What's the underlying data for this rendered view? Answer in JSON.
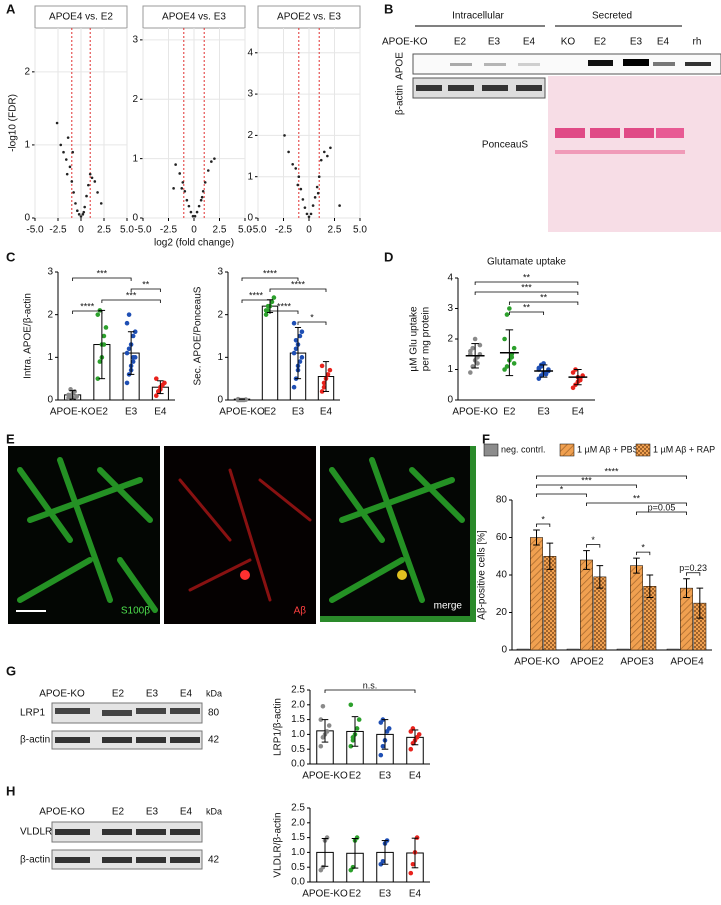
{
  "panel_labels": [
    "A",
    "B",
    "C",
    "D",
    "E",
    "F",
    "G",
    "H"
  ],
  "blot_b": {
    "headers": [
      "Intracellular",
      "Secreted"
    ],
    "lanes": [
      "APOE-KO",
      "E2",
      "E3",
      "E4",
      "KO",
      "E2",
      "E3",
      "E4",
      "rh"
    ],
    "rows": [
      "APOE",
      "β-actin"
    ],
    "stain": "PonceauS"
  },
  "image_e": {
    "channels": [
      "S100β",
      "Aβ",
      "merge"
    ]
  },
  "blot_g": {
    "lanes": [
      "APOE-KO",
      "E2",
      "E3",
      "E4"
    ],
    "unit": "kDa",
    "rows": [
      "LRP1",
      "β-actin"
    ],
    "sizes": [
      "80",
      "42"
    ]
  },
  "blot_h": {
    "lanes": [
      "APOE-KO",
      "E2",
      "E3",
      "E4"
    ],
    "unit": "kDa",
    "rows": [
      "VLDLR",
      "β-actin"
    ],
    "sizes": [
      "42"
    ]
  },
  "chart_data": [
    {
      "type": "scatter",
      "title": "APOE4 vs. E2",
      "ylabel": "-log10 (FDR)",
      "x": [
        -2.6,
        -2.2,
        -1.9,
        -1.6,
        -1.4,
        -1.2,
        -1.0,
        -0.8,
        -0.6,
        -0.4,
        -0.2,
        0,
        0.2,
        0.4,
        0.6,
        0.8,
        1.0,
        1.2,
        1.5,
        1.8,
        -1.5,
        -0.9,
        0.3,
        2.2
      ],
      "y": [
        1.3,
        1.0,
        0.9,
        0.8,
        1.1,
        0.7,
        0.5,
        0.35,
        0.2,
        0.1,
        0.05,
        0.02,
        0.05,
        0.15,
        0.3,
        0.45,
        0.6,
        0.55,
        0.5,
        0.35,
        0.6,
        0.9,
        0.08,
        0.2
      ],
      "xlim": [
        -5,
        5
      ],
      "xticks": [
        {
          "value": -5,
          "label": "-5.0"
        },
        -2.5,
        0,
        2.5,
        {
          "value": 5,
          "label": "5.0"
        }
      ],
      "ylim": [
        0,
        2.6
      ],
      "yticks": [
        0,
        1,
        2
      ],
      "vlines": [
        -1,
        1
      ],
      "color": "#222222",
      "line_color": "#e03030",
      "grid": true
    },
    {
      "type": "scatter",
      "title": "APOE4 vs. E3",
      "xlabel": "log2 (fold change)",
      "x": [
        -1.8,
        -1.4,
        -1.1,
        -0.9,
        -0.7,
        -0.5,
        -0.3,
        -0.1,
        0.1,
        0.3,
        0.5,
        0.7,
        0.9,
        1.1,
        1.4,
        1.7,
        -1.2,
        0.8,
        2.0,
        -2.0
      ],
      "y": [
        0.9,
        0.75,
        0.6,
        0.45,
        0.3,
        0.2,
        0.1,
        0.03,
        0.03,
        0.1,
        0.2,
        0.3,
        0.45,
        0.6,
        0.8,
        0.95,
        0.5,
        0.35,
        1.0,
        0.5
      ],
      "xlim": [
        -5,
        5
      ],
      "xticks": [
        {
          "value": -5,
          "label": "-5.0"
        },
        -2.5,
        0,
        2.5,
        {
          "value": 5,
          "label": "5.0"
        }
      ],
      "ylim": [
        0,
        3.2
      ],
      "yticks": [
        0,
        1,
        2,
        3
      ],
      "vlines": [
        -1,
        1
      ],
      "color": "#222222",
      "line_color": "#e03030",
      "grid": true
    },
    {
      "type": "scatter",
      "title": "APOE2 vs. E3",
      "x": [
        -2.0,
        -1.6,
        -1.3,
        -1.0,
        -0.8,
        -0.6,
        -0.4,
        -0.2,
        0,
        0.2,
        0.4,
        0.6,
        0.8,
        1.0,
        1.2,
        1.5,
        1.8,
        2.1,
        -1.1,
        0.9,
        3.0,
        -2.4
      ],
      "y": [
        1.6,
        1.3,
        1.2,
        1.0,
        0.7,
        0.45,
        0.25,
        0.1,
        0.03,
        0.1,
        0.3,
        0.5,
        0.75,
        1.0,
        1.4,
        1.6,
        1.5,
        1.7,
        0.8,
        0.6,
        0.3,
        2.0
      ],
      "xlim": [
        -5,
        5
      ],
      "xticks": [
        {
          "value": -5,
          "label": "-5.0"
        },
        -2.5,
        0,
        2.5,
        {
          "value": 5,
          "label": "5.0"
        }
      ],
      "ylim": [
        0,
        4.6
      ],
      "yticks": [
        0,
        1,
        2,
        3,
        4
      ],
      "vlines": [
        -1,
        1
      ],
      "color": "#222222",
      "line_color": "#e03030",
      "grid": true
    },
    {
      "type": "bar",
      "ylabel": "Intra. APOE/β-actin",
      "categories": [
        "APOE-KO",
        "E2",
        "E3",
        "E4"
      ],
      "values": [
        0.12,
        1.3,
        1.1,
        0.3
      ],
      "errors": [
        0.1,
        0.8,
        0.5,
        0.15
      ],
      "points": [
        [
          0.05,
          0.1,
          0.15,
          0.2,
          0.08,
          0.12,
          0.25,
          0.05
        ],
        [
          0.5,
          0.9,
          1.3,
          1.3,
          1.7,
          2.0,
          2.1,
          1.0,
          1.5
        ],
        [
          0.4,
          0.6,
          0.8,
          0.9,
          1.0,
          1.1,
          1.2,
          1.3,
          1.5,
          1.6,
          1.8,
          2.0,
          0.7,
          1.0
        ],
        [
          0.1,
          0.2,
          0.3,
          0.35,
          0.4,
          0.5,
          0.2,
          0.25
        ]
      ],
      "colors": [
        "#8a8a8a",
        "#2ca02c",
        "#1f4fb4",
        "#e8221c"
      ],
      "ylim": [
        0,
        3
      ],
      "yticks": [
        0,
        1,
        2,
        3
      ],
      "brackets": [
        {
          "from": 0,
          "to": 2,
          "label": "***"
        },
        {
          "from": 2,
          "to": 3,
          "label": "**"
        },
        {
          "from": 1,
          "to": 3,
          "label": "***"
        },
        {
          "from": 0,
          "to": 1,
          "label": "****"
        }
      ]
    },
    {
      "type": "bar",
      "ylabel": "Sec. APOE/PonceauS",
      "categories": [
        "APOE-KO",
        "E2",
        "E3",
        "E4"
      ],
      "values": [
        0.02,
        2.2,
        1.1,
        0.55
      ],
      "errors": [
        0,
        0.15,
        0.6,
        0.35
      ],
      "points": [
        [
          0,
          0,
          0,
          0,
          0.01,
          0.02
        ],
        [
          2.0,
          2.1,
          2.2,
          2.3,
          2.4,
          2.1,
          2.2
        ],
        [
          0.3,
          0.5,
          0.7,
          0.9,
          1.0,
          1.1,
          1.2,
          1.3,
          1.5,
          1.6,
          1.8,
          1.4,
          0.8
        ],
        [
          0.2,
          0.3,
          0.5,
          0.6,
          0.7,
          0.8,
          0.4
        ]
      ],
      "colors": [
        "#8a8a8a",
        "#2ca02c",
        "#1f4fb4",
        "#e8221c"
      ],
      "ylim": [
        0,
        3
      ],
      "yticks": [
        0,
        1,
        2,
        3
      ],
      "brackets": [
        {
          "from": 0,
          "to": 2,
          "label": "****"
        },
        {
          "from": 1,
          "to": 3,
          "label": "****"
        },
        {
          "from": 0,
          "to": 1,
          "label": "****"
        },
        {
          "from": 1,
          "to": 2,
          "label": "****"
        },
        {
          "from": 2,
          "to": 3,
          "label": "*"
        }
      ]
    },
    {
      "type": "strip",
      "title": "Glutamate uptake",
      "ylabel": [
        "µM Glu uptake",
        "per mg protein"
      ],
      "categories": [
        "APOE-KO",
        "E2",
        "E3",
        "E4"
      ],
      "values": [
        1.45,
        1.55,
        0.95,
        0.75
      ],
      "errors": [
        0.4,
        0.75,
        0.2,
        0.25
      ],
      "points": [
        [
          0.9,
          1.1,
          1.3,
          1.4,
          1.5,
          1.6,
          1.7,
          2.0,
          1.2,
          1.8,
          1.5
        ],
        [
          1.0,
          1.1,
          1.3,
          1.5,
          1.7,
          2.0,
          2.8,
          3.0,
          1.4,
          1.2
        ],
        [
          0.7,
          0.8,
          0.9,
          0.9,
          1.0,
          1.0,
          1.1,
          1.2,
          0.85,
          0.95,
          1.05,
          1.15
        ],
        [
          0.4,
          0.5,
          0.6,
          0.7,
          0.8,
          0.9,
          1.0,
          0.75,
          0.65
        ]
      ],
      "colors": [
        "#8a8a8a",
        "#2ca02c",
        "#1f4fb4",
        "#e8221c"
      ],
      "ylim": [
        0,
        4
      ],
      "yticks": [
        0,
        1,
        2,
        3,
        4
      ],
      "brackets": [
        {
          "from": 0,
          "to": 3,
          "label": "**"
        },
        {
          "from": 0,
          "to": 3,
          "label": "***"
        },
        {
          "from": 1,
          "to": 3,
          "label": "**"
        },
        {
          "from": 1,
          "to": 2,
          "label": "**"
        }
      ]
    },
    {
      "type": "bar",
      "ylabel": "Aβ-positive cells [%]",
      "categories": [
        "APOE-KO",
        "APOE2",
        "APOE3",
        "APOE4"
      ],
      "series": [
        {
          "name": "neg. contrl.",
          "color": "#8c8c8c",
          "values": [
            0.5,
            0.5,
            0.5,
            0.5
          ]
        },
        {
          "name": "1 µM Aβ + PBS",
          "color": "#f0a050",
          "pattern": "hatch",
          "values": [
            60,
            48,
            45,
            33
          ],
          "errors": [
            4,
            5,
            4,
            5
          ]
        },
        {
          "name": "1 µM Aβ + RAP",
          "color": "#f0a050",
          "pattern": "checker",
          "values": [
            50,
            39,
            34,
            25
          ],
          "errors": [
            7,
            6,
            6,
            8
          ]
        }
      ],
      "ylim": [
        0,
        80
      ],
      "yticks": [
        0,
        20,
        40,
        60,
        80
      ],
      "brackets": [
        {
          "from": [
            0,
            1
          ],
          "to": [
            3,
            1
          ],
          "label": "****"
        },
        {
          "from": [
            0,
            1
          ],
          "to": [
            2,
            1
          ],
          "label": "***"
        },
        {
          "from": [
            0,
            1
          ],
          "to": [
            1,
            1
          ],
          "label": "*"
        },
        {
          "from": [
            1,
            1
          ],
          "to": [
            3,
            1
          ],
          "label": "**"
        },
        {
          "from": [
            2,
            1
          ],
          "to": [
            3,
            1
          ],
          "label": "p=0.05"
        },
        {
          "from": [
            0,
            1
          ],
          "to": [
            0,
            2
          ],
          "label": "*"
        },
        {
          "from": [
            1,
            1
          ],
          "to": [
            1,
            2
          ],
          "label": "*"
        },
        {
          "from": [
            2,
            1
          ],
          "to": [
            2,
            2
          ],
          "label": "*"
        },
        {
          "from": [
            3,
            1
          ],
          "to": [
            3,
            2
          ],
          "label": "p=0.23"
        }
      ]
    },
    {
      "type": "bar",
      "ylabel": "LRP1/β-actin",
      "categories": [
        "APOE-KO",
        "E2",
        "E3",
        "E4"
      ],
      "values": [
        1.12,
        1.1,
        1.0,
        0.9
      ],
      "errors": [
        0.38,
        0.5,
        0.5,
        0.25
      ],
      "points": [
        [
          0.6,
          0.9,
          1.0,
          1.1,
          1.3,
          1.5,
          1.95
        ],
        [
          0.6,
          0.9,
          1.0,
          1.2,
          1.5,
          2.0,
          0.8
        ],
        [
          0.3,
          0.6,
          0.8,
          1.1,
          1.2,
          1.4,
          1.5
        ],
        [
          0.5,
          0.7,
          0.8,
          0.9,
          1.0,
          1.1,
          1.2
        ]
      ],
      "colors": [
        "#8a8a8a",
        "#2ca02c",
        "#1f4fb4",
        "#e8221c"
      ],
      "ylim": [
        0,
        2.5
      ],
      "yticks": [
        {
          "value": 0,
          "label": "0.0"
        },
        0.5,
        {
          "value": 1,
          "label": "1.0"
        },
        1.5,
        {
          "value": 2,
          "label": "2.0"
        },
        2.5
      ],
      "brackets": [
        {
          "from": 0,
          "to": 3,
          "label": "n.s."
        }
      ]
    },
    {
      "type": "bar",
      "ylabel": "VLDLR/β-actin",
      "categories": [
        "APOE-KO",
        "E2",
        "E3",
        "E4"
      ],
      "values": [
        1.0,
        0.97,
        1.0,
        0.98
      ],
      "errors": [
        0.47,
        0.5,
        0.4,
        0.5
      ],
      "points": [
        [
          0.4,
          0.5,
          1.4,
          1.5
        ],
        [
          0.4,
          0.5,
          1.4,
          1.5
        ],
        [
          0.6,
          0.7,
          1.3,
          1.4
        ],
        [
          0.3,
          0.6,
          1.0,
          1.5
        ]
      ],
      "colors": [
        "#8a8a8a",
        "#2ca02c",
        "#1f4fb4",
        "#e8221c"
      ],
      "ylim": [
        0,
        2.5
      ],
      "yticks": [
        {
          "value": 0,
          "label": "0.0"
        },
        0.5,
        {
          "value": 1,
          "label": "1.0"
        },
        1.5,
        {
          "value": 2,
          "label": "2.0"
        },
        2.5
      ]
    }
  ]
}
